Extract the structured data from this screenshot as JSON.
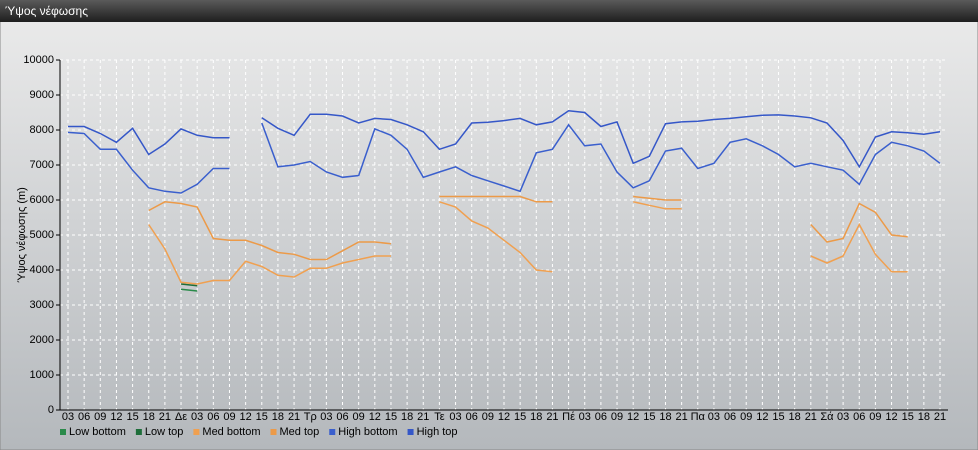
{
  "chart_data": {
    "type": "line",
    "title": "Ύψος νέφωσης",
    "y_label": "Ύψος νέφωσης (m)",
    "categories": [
      "03",
      "06",
      "09",
      "12",
      "15",
      "18",
      "21",
      "Δε",
      "03",
      "06",
      "09",
      "12",
      "15",
      "18",
      "21",
      "Τρ",
      "03",
      "06",
      "09",
      "12",
      "15",
      "18",
      "21",
      "Τε",
      "03",
      "06",
      "09",
      "12",
      "15",
      "18",
      "21",
      "Πέ",
      "03",
      "06",
      "09",
      "12",
      "15",
      "18",
      "21",
      "Πα",
      "03",
      "06",
      "09",
      "12",
      "15",
      "18",
      "21",
      "Σά",
      "03",
      "06",
      "09",
      "12",
      "15",
      "18",
      "21"
    ],
    "ylim": [
      0,
      10000
    ],
    "yticks": [
      0,
      1000,
      2000,
      3000,
      4000,
      5000,
      6000,
      7000,
      8000,
      9000,
      10000
    ],
    "grid": true,
    "series": [
      {
        "name": "Low bottom",
        "color": "#2a8a4a",
        "values": [
          null,
          null,
          null,
          null,
          null,
          null,
          null,
          3450,
          3400,
          null,
          null,
          null,
          null,
          null,
          null,
          null,
          null,
          null,
          null,
          null,
          null,
          null,
          null,
          null,
          null,
          null,
          null,
          null,
          null,
          null,
          null,
          null,
          null,
          null,
          null,
          null,
          null,
          null,
          null,
          null,
          null,
          null,
          null,
          null,
          null,
          null,
          null,
          null,
          null,
          null,
          null,
          null,
          null,
          null,
          null
        ]
      },
      {
        "name": "Low top",
        "color": "#1e6e3a",
        "values": [
          null,
          null,
          null,
          null,
          null,
          null,
          null,
          3600,
          3550,
          null,
          null,
          null,
          null,
          null,
          null,
          null,
          null,
          null,
          null,
          null,
          null,
          null,
          null,
          null,
          null,
          null,
          null,
          null,
          null,
          null,
          null,
          null,
          null,
          null,
          null,
          null,
          null,
          null,
          null,
          null,
          null,
          null,
          null,
          null,
          null,
          null,
          null,
          null,
          null,
          null,
          null,
          null,
          null,
          null,
          null
        ]
      },
      {
        "name": "Med bottom",
        "color": "#f0a050",
        "values": [
          null,
          null,
          null,
          null,
          null,
          5300,
          4600,
          3650,
          3600,
          3700,
          3700,
          4250,
          4100,
          3850,
          3800,
          4050,
          4050,
          4200,
          4300,
          4400,
          4400,
          null,
          null,
          5950,
          5800,
          5400,
          5200,
          4850,
          4500,
          4000,
          3950,
          null,
          null,
          null,
          null,
          5950,
          5850,
          5750,
          5750,
          null,
          null,
          null,
          null,
          null,
          null,
          null,
          4400,
          4200,
          4400,
          5300,
          4450,
          3950,
          3950,
          null,
          null
        ]
      },
      {
        "name": "Med top",
        "color": "#ec9a48",
        "values": [
          null,
          null,
          null,
          null,
          null,
          5700,
          5950,
          5900,
          5800,
          4900,
          4850,
          4850,
          4700,
          4500,
          4450,
          4300,
          4300,
          4550,
          4800,
          4800,
          4750,
          null,
          null,
          6100,
          6100,
          6100,
          6100,
          6100,
          6100,
          5950,
          5950,
          null,
          null,
          null,
          null,
          6100,
          6050,
          6000,
          6000,
          null,
          null,
          null,
          null,
          null,
          null,
          null,
          5300,
          4800,
          4900,
          5900,
          5650,
          5000,
          4950,
          null,
          null
        ]
      },
      {
        "name": "High bottom",
        "color": "#3a5fcd",
        "values": [
          7930,
          7900,
          7450,
          7450,
          6850,
          6350,
          6250,
          6200,
          6450,
          6900,
          6900,
          null,
          8200,
          6950,
          7000,
          7100,
          6800,
          6650,
          6700,
          8030,
          7850,
          7450,
          6650,
          6800,
          6950,
          6700,
          6550,
          6400,
          6250,
          7350,
          7450,
          8150,
          7550,
          7600,
          6800,
          6350,
          6550,
          7400,
          7480,
          6900,
          7050,
          7650,
          7750,
          7550,
          7300,
          6950,
          7050,
          6950,
          6850,
          6450,
          7300,
          7650,
          7550,
          7400,
          7050
        ]
      },
      {
        "name": "High top",
        "color": "#3557c8",
        "values": [
          8100,
          8100,
          7900,
          7650,
          8050,
          7300,
          7600,
          8030,
          7850,
          7780,
          7780,
          null,
          8350,
          8050,
          7850,
          8450,
          8450,
          8400,
          8200,
          8330,
          8300,
          8150,
          7950,
          7450,
          7600,
          8200,
          8220,
          8270,
          8330,
          8150,
          8230,
          8550,
          8500,
          8100,
          8230,
          7050,
          7250,
          8180,
          8230,
          8250,
          8300,
          8330,
          8380,
          8420,
          8430,
          8400,
          8350,
          8200,
          7700,
          6950,
          7800,
          7950,
          7920,
          7880,
          7950
        ]
      }
    ]
  }
}
